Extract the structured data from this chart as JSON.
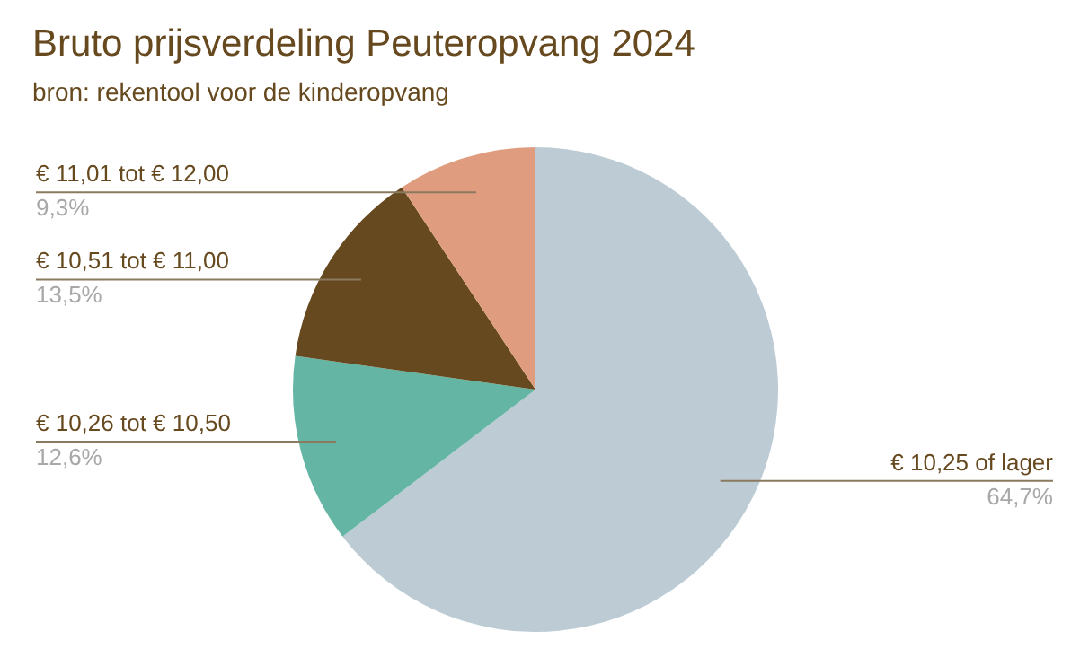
{
  "chart_data": {
    "type": "pie",
    "title": "Bruto prijsverdeling Peuteropvang 2024",
    "subtitle": "bron: rekentool voor de kinderopvang",
    "categories": [
      "€ 10,25 of lager",
      "€ 10,26 tot € 10,50",
      "€ 10,51 tot € 11,00",
      "€ 11,01 tot € 12,00"
    ],
    "values": [
      64.7,
      12.6,
      13.5,
      9.3
    ],
    "colors": [
      "#bccbd4",
      "#64b5a3",
      "#66491e",
      "#e09c7e"
    ],
    "value_labels": [
      "64,7%",
      "12,6%",
      "13,5%",
      "9,3%"
    ],
    "legend": false
  }
}
